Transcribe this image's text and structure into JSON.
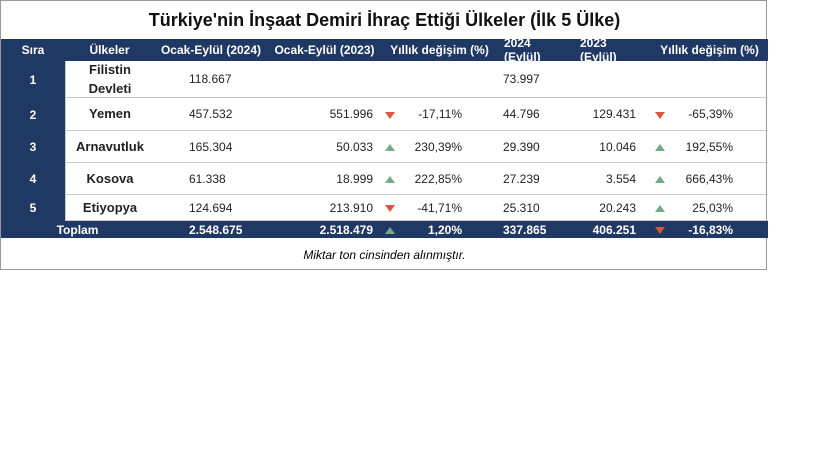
{
  "header": {
    "title": "Türkiye'nin İnşaat Demiri İhraç Ettiği Ülkeler (İlk 5 Ülke)"
  },
  "table": {
    "columns": [
      "Sıra",
      "Ülkeler",
      "Ocak-Eylül (2024)",
      "Ocak-Eylül (2023)",
      "Yıllık değişim (%)",
      "2024 (Eylül)",
      "2023 (Eylül)",
      "Yıllık değişim (%)"
    ],
    "rows": [
      [
        "1",
        "Filistin Devleti",
        "118.667",
        null,
        null,
        "73.997",
        null,
        null
      ],
      [
        "2",
        "Yemen",
        "457.532",
        "551.996",
        "-17,11%",
        "44.796",
        "129.431",
        "-65,39%"
      ],
      [
        "3",
        "Arnavutluk",
        "165.304",
        "50.033",
        "230,39%",
        "29.390",
        "10.046",
        "192,55%"
      ],
      [
        "4",
        "Kosova",
        "61.338",
        "18.999",
        "222,85%",
        "27.239",
        "3.554",
        "666,43%"
      ],
      [
        "5",
        "Etiyopya",
        "124.694",
        "213.910",
        "-41,71%",
        "25.310",
        "20.243",
        "25,03%"
      ]
    ],
    "total": [
      "Toplam",
      "2.548.675",
      "2.518.479",
      "1,20%",
      "337.865",
      "406.251",
      "-16,83%"
    ]
  },
  "footer": {
    "note": "Miktar  ton cinsinden alınmıştır."
  }
}
